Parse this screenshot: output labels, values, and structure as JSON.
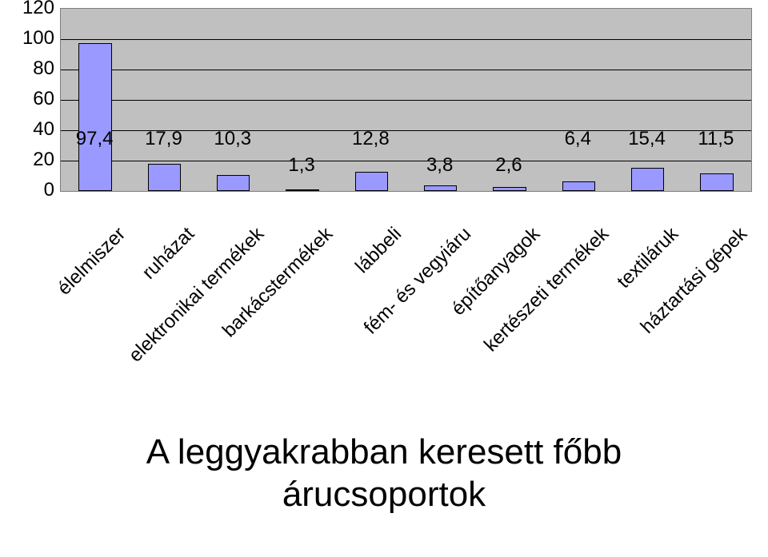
{
  "chart": {
    "type": "bar",
    "ylim": [
      0,
      120
    ],
    "ytick_step": 20,
    "yticks": [
      0,
      20,
      40,
      60,
      80,
      100,
      120
    ],
    "ytick_labels": [
      "0",
      "20",
      "40",
      "60",
      "80",
      "100",
      "120"
    ],
    "plot_background": "#c0c0c0",
    "gridline_color": "#000000",
    "bar_fill": "#9999ff",
    "bar_border": "#000000",
    "label_fontsize": 24,
    "category_fontsize": 24,
    "category_rotation_deg": -45,
    "categories": [
      "élelmiszer",
      "ruházat",
      "elektronikai termékek",
      "barkácstermékek",
      "lábbeli",
      "fém- és vegyiáru",
      "építőanyagok",
      "kertészeti termékek",
      "textiláruk",
      "háztartási gépek"
    ],
    "values": [
      97.4,
      17.9,
      10.3,
      1.3,
      12.8,
      3.8,
      2.6,
      6.4,
      15.4,
      11.5
    ],
    "value_labels": [
      "97,4",
      "17,9",
      "10,3",
      "1,3",
      "12,8",
      "3,8",
      "2,6",
      "6,4",
      "15,4",
      "11,5"
    ],
    "label_row": [
      0,
      0,
      0,
      1,
      0,
      1,
      1,
      0,
      0,
      0
    ]
  },
  "title_line1": "A leggyakrabban keresett főbb",
  "title_line2": "árucsoportok"
}
